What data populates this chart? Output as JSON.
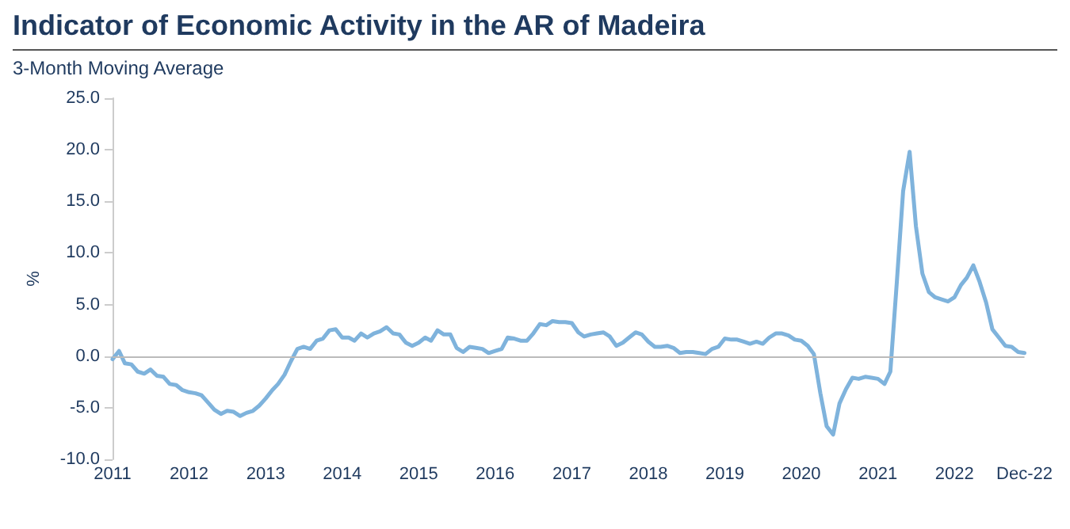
{
  "chart_data": {
    "type": "line",
    "title": "Indicator of Economic Activity in the AR of Madeira",
    "subtitle": "3-Month Moving Average",
    "ylabel": "%",
    "x": [
      "2011-01",
      "2011-02",
      "2011-03",
      "2011-04",
      "2011-05",
      "2011-06",
      "2011-07",
      "2011-08",
      "2011-09",
      "2011-10",
      "2011-11",
      "2011-12",
      "2012-01",
      "2012-02",
      "2012-03",
      "2012-04",
      "2012-05",
      "2012-06",
      "2012-07",
      "2012-08",
      "2012-09",
      "2012-10",
      "2012-11",
      "2012-12",
      "2013-01",
      "2013-02",
      "2013-03",
      "2013-04",
      "2013-05",
      "2013-06",
      "2013-07",
      "2013-08",
      "2013-09",
      "2013-10",
      "2013-11",
      "2013-12",
      "2014-01",
      "2014-02",
      "2014-03",
      "2014-04",
      "2014-05",
      "2014-06",
      "2014-07",
      "2014-08",
      "2014-09",
      "2014-10",
      "2014-11",
      "2014-12",
      "2015-01",
      "2015-02",
      "2015-03",
      "2015-04",
      "2015-05",
      "2015-06",
      "2015-07",
      "2015-08",
      "2015-09",
      "2015-10",
      "2015-11",
      "2015-12",
      "2016-01",
      "2016-02",
      "2016-03",
      "2016-04",
      "2016-05",
      "2016-06",
      "2016-07",
      "2016-08",
      "2016-09",
      "2016-10",
      "2016-11",
      "2016-12",
      "2017-01",
      "2017-02",
      "2017-03",
      "2017-04",
      "2017-05",
      "2017-06",
      "2017-07",
      "2017-08",
      "2017-09",
      "2017-10",
      "2017-11",
      "2017-12",
      "2018-01",
      "2018-02",
      "2018-03",
      "2018-04",
      "2018-05",
      "2018-06",
      "2018-07",
      "2018-08",
      "2018-09",
      "2018-10",
      "2018-11",
      "2018-12",
      "2019-01",
      "2019-02",
      "2019-03",
      "2019-04",
      "2019-05",
      "2019-06",
      "2019-07",
      "2019-08",
      "2019-09",
      "2019-10",
      "2019-11",
      "2019-12",
      "2020-01",
      "2020-02",
      "2020-03",
      "2020-04",
      "2020-05",
      "2020-06",
      "2020-07",
      "2020-08",
      "2020-09",
      "2020-10",
      "2020-11",
      "2020-12",
      "2021-01",
      "2021-02",
      "2021-03",
      "2021-04",
      "2021-05",
      "2021-06",
      "2021-07",
      "2021-08",
      "2021-09",
      "2021-10",
      "2021-11",
      "2021-12",
      "2022-01",
      "2022-02",
      "2022-03",
      "2022-04",
      "2022-05",
      "2022-06",
      "2022-07",
      "2022-08",
      "2022-09",
      "2022-10",
      "2022-11",
      "2022-12"
    ],
    "series": [
      {
        "color": "#7fb3dc",
        "values": [
          -0.3,
          0.5,
          -0.7,
          -0.8,
          -1.5,
          -1.7,
          -1.3,
          -1.9,
          -2.0,
          -2.7,
          -2.8,
          -3.3,
          -3.5,
          -3.6,
          -3.8,
          -4.5,
          -5.2,
          -5.6,
          -5.3,
          -5.4,
          -5.8,
          -5.5,
          -5.3,
          -4.8,
          -4.1,
          -3.3,
          -2.7,
          -1.8,
          -0.5,
          0.7,
          0.9,
          0.7,
          1.5,
          1.7,
          2.5,
          2.6,
          1.8,
          1.8,
          1.5,
          2.2,
          1.8,
          2.2,
          2.4,
          2.8,
          2.2,
          2.1,
          1.3,
          1.0,
          1.3,
          1.8,
          1.5,
          2.5,
          2.1,
          2.1,
          0.8,
          0.4,
          0.9,
          0.8,
          0.7,
          0.3,
          0.5,
          0.7,
          1.8,
          1.7,
          1.5,
          1.5,
          2.2,
          3.1,
          3.0,
          3.4,
          3.3,
          3.3,
          3.2,
          2.3,
          1.9,
          2.1,
          2.2,
          2.3,
          1.9,
          1.0,
          1.3,
          1.8,
          2.3,
          2.1,
          1.4,
          0.9,
          0.9,
          1.0,
          0.8,
          0.3,
          0.4,
          0.4,
          0.3,
          0.2,
          0.7,
          0.9,
          1.7,
          1.6,
          1.6,
          1.4,
          1.2,
          1.4,
          1.2,
          1.8,
          2.2,
          2.2,
          2.0,
          1.6,
          1.5,
          1.0,
          0.2,
          -3.6,
          -6.8,
          -7.6,
          -4.6,
          -3.2,
          -2.1,
          -2.2,
          -2.0,
          -2.1,
          -2.2,
          -2.7,
          -1.5,
          7.2,
          16.0,
          19.8,
          12.6,
          8.0,
          6.2,
          5.7,
          5.5,
          5.3,
          5.7,
          6.9,
          7.6,
          8.8,
          7.2,
          5.2,
          2.6,
          1.8,
          1.0,
          0.9,
          0.4,
          0.3
        ]
      }
    ],
    "xlim": [
      "2011-01",
      "2022-12"
    ],
    "xticks": [
      {
        "value": "2011-01",
        "label": "2011"
      },
      {
        "value": "2012-01",
        "label": "2012"
      },
      {
        "value": "2013-01",
        "label": "2013"
      },
      {
        "value": "2014-01",
        "label": "2014"
      },
      {
        "value": "2015-01",
        "label": "2015"
      },
      {
        "value": "2016-01",
        "label": "2016"
      },
      {
        "value": "2017-01",
        "label": "2017"
      },
      {
        "value": "2018-01",
        "label": "2018"
      },
      {
        "value": "2019-01",
        "label": "2019"
      },
      {
        "value": "2020-01",
        "label": "2020"
      },
      {
        "value": "2021-01",
        "label": "2021"
      },
      {
        "value": "2022-01",
        "label": "2022"
      },
      {
        "value": "2022-12",
        "label": "Dec-22"
      }
    ],
    "ylim": [
      -10,
      25
    ],
    "yticks": [
      {
        "value": -10,
        "label": "-10.0"
      },
      {
        "value": -5,
        "label": "-5.0"
      },
      {
        "value": 0,
        "label": "0.0"
      },
      {
        "value": 5,
        "label": "5.0"
      },
      {
        "value": 10,
        "label": "10.0"
      },
      {
        "value": 15,
        "label": "15.0"
      },
      {
        "value": 20,
        "label": "20.0"
      },
      {
        "value": 25,
        "label": "25.0"
      }
    ],
    "ref_lines": [
      {
        "axis": "y",
        "value": 0,
        "color": "#bbbbbb"
      }
    ],
    "grid": false,
    "marker": "none",
    "line_style": "solid"
  }
}
